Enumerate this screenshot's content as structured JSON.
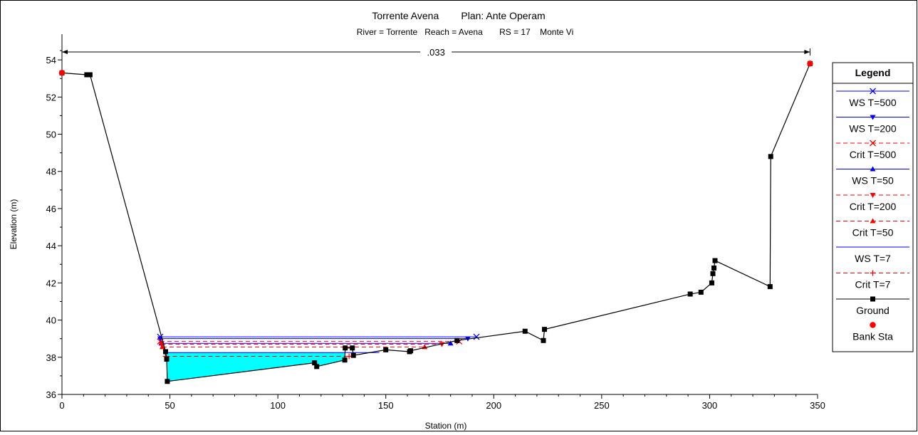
{
  "chart_data": {
    "type": "line",
    "title": "Torrente Avena        Plan: Ante Operam",
    "subtitle": "River = Torrente   Reach = Avena       RS = 17    Monte Vi",
    "xlabel": "Station (m)",
    "ylabel": "Elevation (m)",
    "xlim": [
      0,
      350
    ],
    "ylim": [
      36,
      55
    ],
    "xticks": [
      0,
      50,
      100,
      150,
      200,
      250,
      300,
      350
    ],
    "yticks": [
      36,
      38,
      40,
      42,
      44,
      46,
      48,
      50,
      52,
      54
    ],
    "manning_label": ".033",
    "manning_range": [
      0,
      346.5
    ],
    "legend": {
      "title": "Legend",
      "placement": "right",
      "entries": [
        {
          "label": "WS T=500",
          "color": "#0000ff",
          "dash": false,
          "marker": "x"
        },
        {
          "label": "WS T=200",
          "color": "#0000ff",
          "dash": false,
          "marker": "tri-down"
        },
        {
          "label": "Crit T=500",
          "color": "#ff0000",
          "dash": true,
          "marker": "x"
        },
        {
          "label": "WS T=50",
          "color": "#0000ff",
          "dash": false,
          "marker": "tri-up"
        },
        {
          "label": "Crit T=200",
          "color": "#ff0000",
          "dash": true,
          "marker": "tri-down"
        },
        {
          "label": "Crit T=50",
          "color": "#ff0000",
          "dash": true,
          "marker": "tri-up"
        },
        {
          "label": "WS T=7",
          "color": "#0000ff",
          "dash": false,
          "marker": "none"
        },
        {
          "label": "Crit T=7",
          "color": "#ff0000",
          "dash": true,
          "marker": "plus"
        },
        {
          "label": "Ground",
          "color": "#000000",
          "dash": false,
          "marker": "square"
        },
        {
          "label": "Bank Sta",
          "color": "#ff0000",
          "dash": false,
          "marker": "dot",
          "no_line": true
        }
      ]
    },
    "ground": {
      "x": [
        0,
        11.5,
        13,
        48,
        48.5,
        48.8,
        117,
        118,
        131,
        131.2,
        134.5,
        135,
        150,
        161,
        161.5,
        183,
        214.5,
        223,
        223.5,
        291,
        296,
        301,
        301.5,
        302,
        302.5,
        328,
        328.3,
        346.5
      ],
      "y": [
        53.3,
        53.2,
        53.2,
        38.3,
        37.9,
        36.7,
        37.7,
        37.5,
        37.85,
        38.5,
        38.5,
        38.1,
        38.4,
        38.3,
        38.35,
        38.9,
        39.4,
        38.9,
        39.5,
        41.4,
        41.5,
        42.0,
        42.5,
        42.8,
        43.2,
        41.8,
        48.8,
        53.8
      ]
    },
    "bank_stations": {
      "x": [
        0,
        346.5
      ],
      "y": [
        53.3,
        53.8
      ]
    },
    "water_surface": [
      {
        "name": "WS T=500",
        "elevation": 39.1,
        "x_start": 45.5,
        "x_end": 192,
        "color": "#0000ff",
        "dash": false,
        "marker": "x"
      },
      {
        "name": "WS T=200",
        "elevation": 39.0,
        "x_start": 45.5,
        "x_end": 188,
        "color": "#0000ff",
        "dash": false,
        "marker": "tri-down"
      },
      {
        "name": "Crit T=500",
        "elevation": 38.85,
        "x_start": 45.5,
        "x_end": 184,
        "color": "#ff0000",
        "dash": true,
        "marker": "x"
      },
      {
        "name": "WS T=50",
        "elevation": 38.75,
        "x_start": 46,
        "x_end": 180,
        "color": "#0000ff",
        "dash": false,
        "marker": "tri-up"
      },
      {
        "name": "Crit T=200",
        "elevation": 38.7,
        "x_start": 46,
        "x_end": 176,
        "color": "#ff0000",
        "dash": true,
        "marker": "tri-down"
      },
      {
        "name": "Crit T=50",
        "elevation": 38.55,
        "x_start": 46.5,
        "x_end": 168,
        "color": "#ff0000",
        "dash": true,
        "marker": "tri-up"
      },
      {
        "name": "WS T=7",
        "elevation": 38.25,
        "x_start": 47,
        "x_end": 147,
        "color": "#0000ff",
        "dash": false,
        "marker": "none"
      },
      {
        "name": "Crit T=7",
        "elevation": 38.05,
        "x_start": 48,
        "x_end": 133,
        "color": "#ff0000",
        "dash": true,
        "marker": "plus"
      }
    ],
    "water_fill": {
      "color": "#00ffff",
      "elevation": 38.25,
      "x": [
        47,
        48.5,
        48.8,
        117,
        118,
        131,
        131.2,
        147
      ],
      "y": [
        38.25,
        37.9,
        36.7,
        37.7,
        37.5,
        37.85,
        38.25,
        38.25
      ]
    }
  }
}
